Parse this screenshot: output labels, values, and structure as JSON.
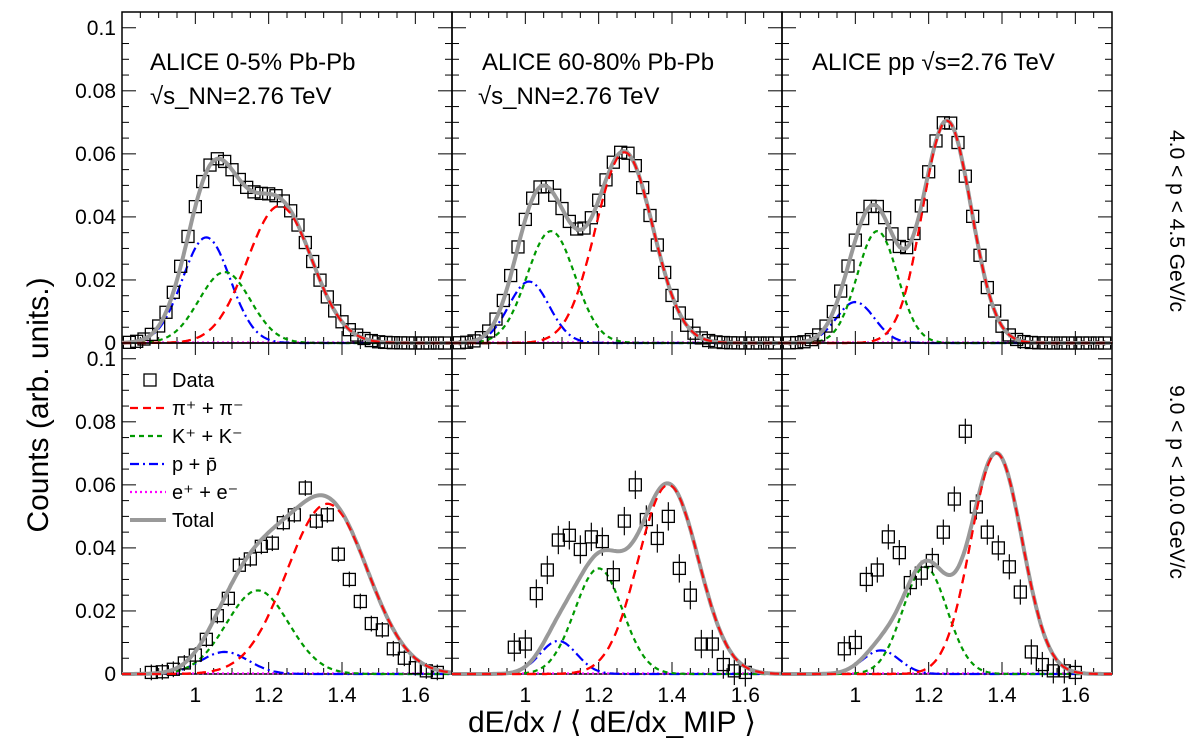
{
  "chart_data": {
    "type": "scatter",
    "ylabel": "Counts (arb. units.)",
    "xlabel": "dE/dx / ⟨ dE/dx_MIP ⟩",
    "xlim": [
      0.8,
      1.7
    ],
    "ylim": [
      0,
      0.105
    ],
    "x_ticks": [
      "1",
      "1.2",
      "1.4",
      "1.6"
    ],
    "y_ticks": [
      "0.1",
      "0.08",
      "0.06",
      "0.04",
      "0.02",
      "0"
    ],
    "columns": [
      {
        "title_line1": "ALICE 0-5% Pb-Pb",
        "title_line2": "√s_NN=2.76 TeV"
      },
      {
        "title_line1": "ALICE 60-80% Pb-Pb",
        "title_line2": "√s_NN=2.76 TeV"
      },
      {
        "title_line1": "ALICE pp  √s=2.76 TeV",
        "title_line2": ""
      }
    ],
    "rows": [
      {
        "label": "4.0 < p < 4.5 GeV/c"
      },
      {
        "label": "9.0 < p < 10.0 GeV/c"
      }
    ],
    "legend": [
      {
        "key": "data",
        "label": "Data",
        "color": "#000000"
      },
      {
        "key": "pi",
        "label": "π⁺ + π⁻",
        "color": "#ff0000"
      },
      {
        "key": "k",
        "label": "K⁺ + K⁻",
        "color": "#009900"
      },
      {
        "key": "p",
        "label": "p + p̄",
        "color": "#0000ff"
      },
      {
        "key": "e",
        "label": "e⁺ + e⁻",
        "color": "#ff00ff"
      },
      {
        "key": "total",
        "label": "Total",
        "color": "#999999"
      }
    ],
    "panels": [
      {
        "row": 0,
        "col": 0,
        "components": {
          "pi": {
            "amp": 0.0435,
            "mu": 1.23,
            "sigma": 0.088
          },
          "k": {
            "amp": 0.0225,
            "mu": 1.08,
            "sigma": 0.07
          },
          "p": {
            "amp": 0.0335,
            "mu": 1.03,
            "sigma": 0.065
          }
        },
        "data": {
          "x_min": 0.82,
          "step": 0.02,
          "n": 44,
          "y_err": 0.0006
        }
      },
      {
        "row": 0,
        "col": 1,
        "components": {
          "pi": {
            "amp": 0.0605,
            "mu": 1.27,
            "sigma": 0.078
          },
          "k": {
            "amp": 0.0355,
            "mu": 1.07,
            "sigma": 0.065
          },
          "p": {
            "amp": 0.0195,
            "mu": 1.01,
            "sigma": 0.055
          }
        },
        "data": {
          "x_min": 0.82,
          "step": 0.02,
          "n": 44,
          "y_err": 0.0008
        }
      },
      {
        "row": 0,
        "col": 2,
        "components": {
          "pi": {
            "amp": 0.0705,
            "mu": 1.25,
            "sigma": 0.066
          },
          "k": {
            "amp": 0.0355,
            "mu": 1.06,
            "sigma": 0.055
          },
          "p": {
            "amp": 0.013,
            "mu": 1.0,
            "sigma": 0.052
          }
        },
        "data": {
          "x_min": 0.82,
          "step": 0.02,
          "n": 44,
          "y_err": 0.0008
        }
      },
      {
        "row": 1,
        "col": 0,
        "components": {
          "pi": {
            "amp": 0.054,
            "mu": 1.36,
            "sigma": 0.11
          },
          "k": {
            "amp": 0.0265,
            "mu": 1.17,
            "sigma": 0.085
          },
          "p": {
            "amp": 0.007,
            "mu": 1.08,
            "sigma": 0.065
          }
        },
        "data": {
          "x_min": 0.88,
          "step": 0.03,
          "n": 27,
          "y_err": 0.0025,
          "values": [
            0.0005,
            0.0007,
            0.0015,
            0.0035,
            0.006,
            0.011,
            0.0185,
            0.024,
            0.0345,
            0.0365,
            0.0405,
            0.0415,
            0.048,
            0.0505,
            0.059,
            0.0485,
            0.0505,
            0.038,
            0.03,
            0.023,
            0.016,
            0.014,
            0.008,
            0.005,
            0.002,
            0.001,
            0.0005
          ]
        }
      },
      {
        "row": 1,
        "col": 1,
        "components": {
          "pi": {
            "amp": 0.06,
            "mu": 1.39,
            "sigma": 0.082
          },
          "k": {
            "amp": 0.0335,
            "mu": 1.2,
            "sigma": 0.065
          },
          "p": {
            "amp": 0.0105,
            "mu": 1.09,
            "sigma": 0.05
          }
        },
        "data": {
          "x_min": 0.97,
          "step": 0.03,
          "n": 22,
          "y_err": 0.0045,
          "values": [
            0.0085,
            0.0095,
            0.0255,
            0.033,
            0.0425,
            0.044,
            0.0395,
            0.0435,
            0.042,
            0.0315,
            0.0485,
            0.06,
            0.049,
            0.043,
            0.05,
            0.0335,
            0.025,
            0.0095,
            0.0095,
            0.003,
            0.001,
            0.0005
          ]
        }
      },
      {
        "row": 1,
        "col": 2,
        "components": {
          "pi": {
            "amp": 0.07,
            "mu": 1.385,
            "sigma": 0.07
          },
          "k": {
            "amp": 0.034,
            "mu": 1.19,
            "sigma": 0.06
          },
          "p": {
            "amp": 0.0075,
            "mu": 1.07,
            "sigma": 0.05
          }
        },
        "data": {
          "x_min": 0.97,
          "step": 0.03,
          "n": 22,
          "y_err": 0.004,
          "values": [
            0.008,
            0.01,
            0.03,
            0.033,
            0.0435,
            0.0385,
            0.029,
            0.032,
            0.036,
            0.045,
            0.0555,
            0.077,
            0.053,
            0.045,
            0.04,
            0.034,
            0.026,
            0.007,
            0.003,
            0.001,
            0.001,
            0.0005
          ]
        }
      }
    ]
  }
}
